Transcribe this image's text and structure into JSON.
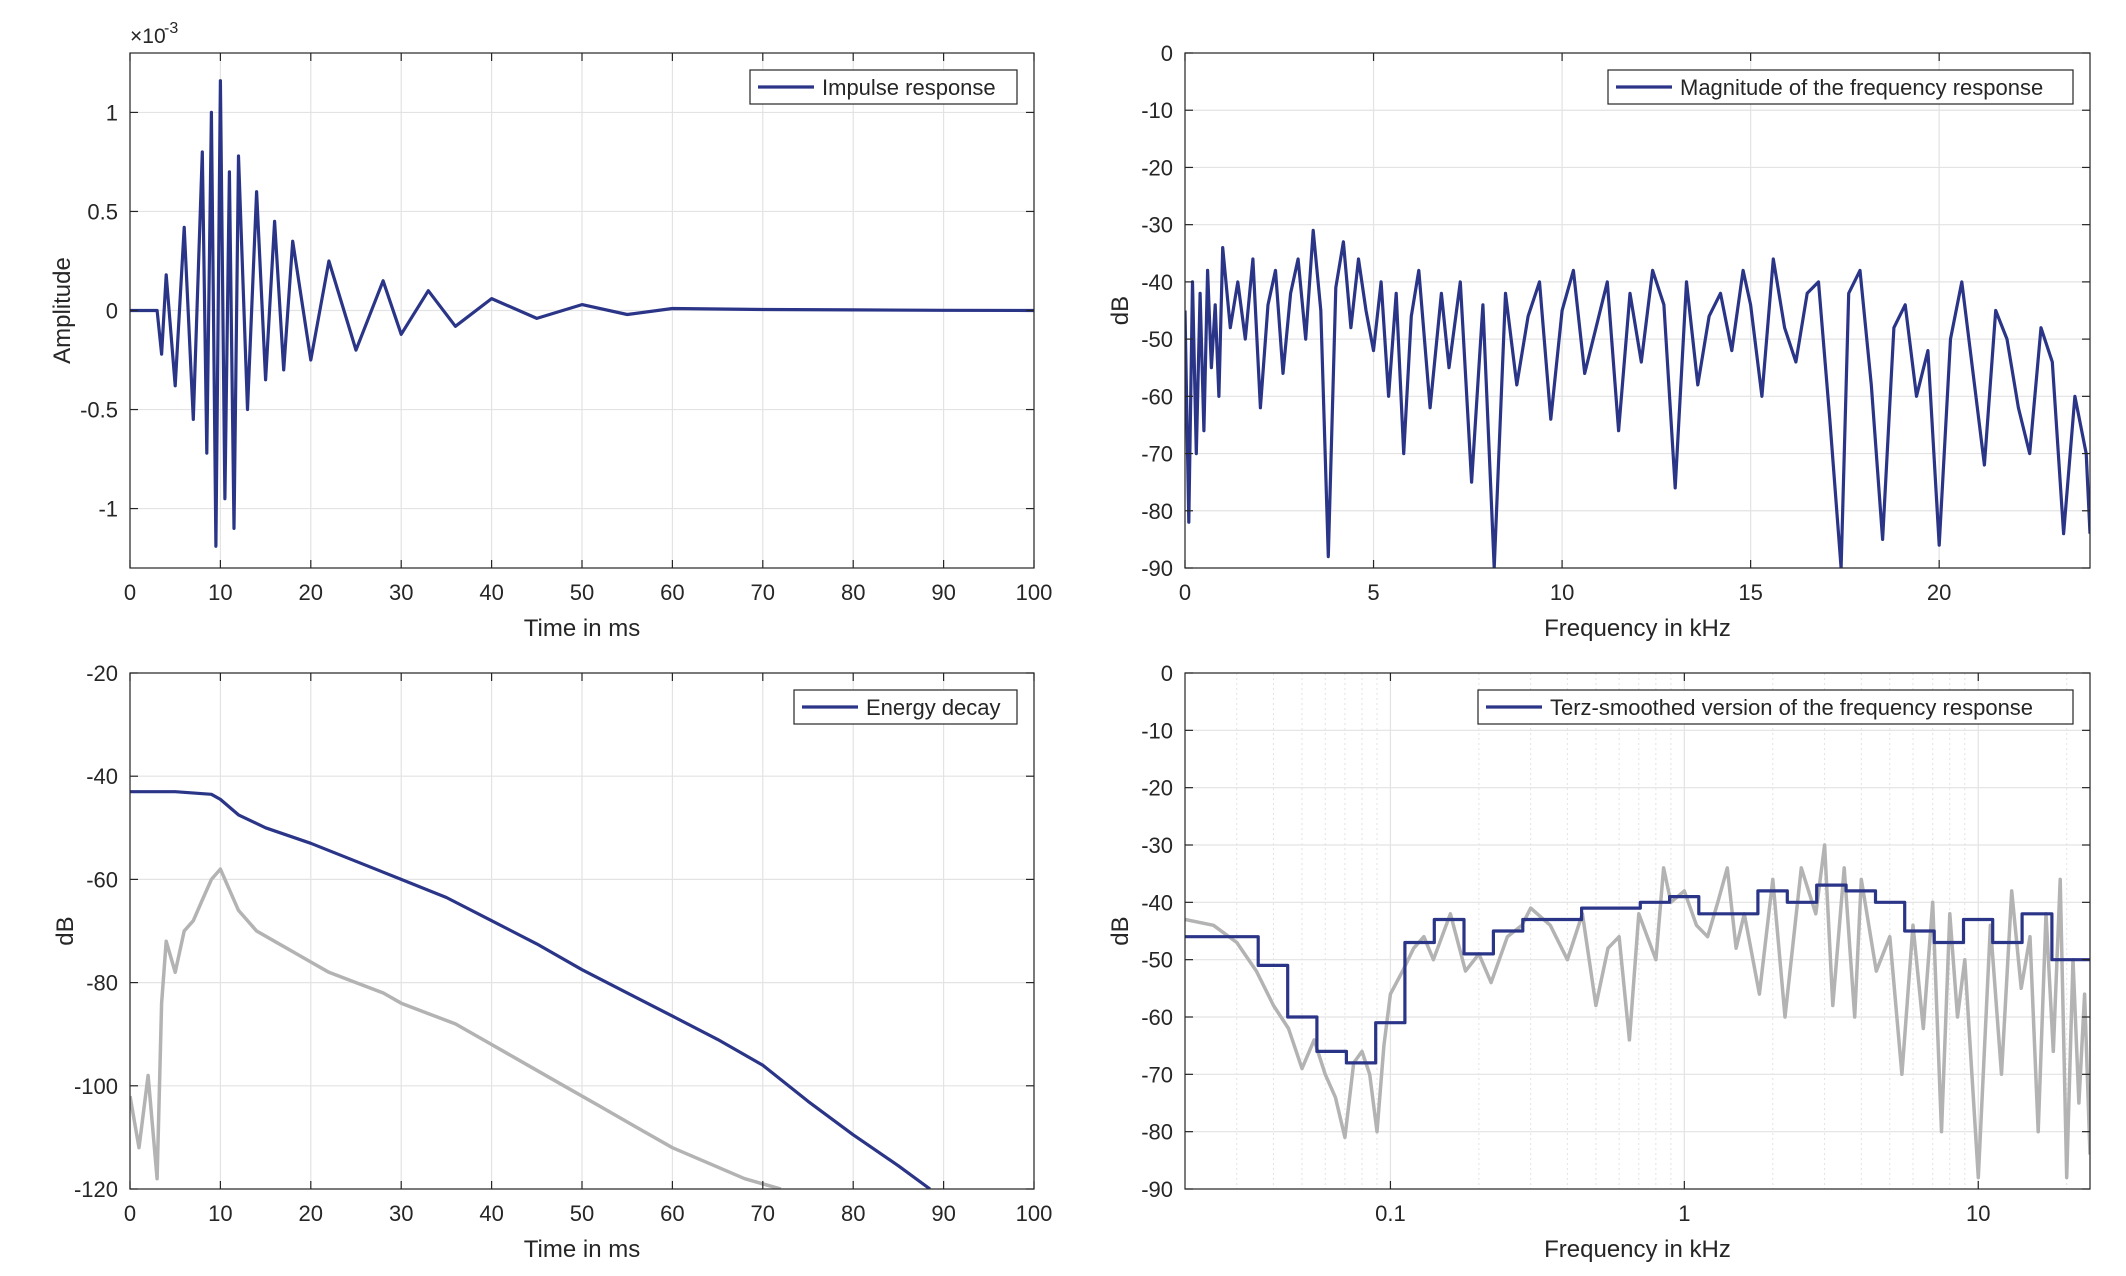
{
  "colors": {
    "series": "#2b3588",
    "gray": "#b3b3b3",
    "grid": "#e3e3e3",
    "axis": "#262626"
  },
  "chart_data": [
    {
      "type": "line",
      "xlabel": "Time in ms",
      "ylabel": "Amplitude",
      "exponent_label": "×10",
      "exponent_power": "-3",
      "xlim": [
        0,
        100
      ],
      "ylim": [
        -1.3,
        1.3
      ],
      "xticks": [
        0,
        10,
        20,
        30,
        40,
        50,
        60,
        70,
        80,
        90,
        100
      ],
      "yticks": [
        -1,
        -0.5,
        0,
        0.5,
        1
      ],
      "grid": true,
      "legend_placement": "top-right",
      "series": [
        {
          "name": "Impulse response",
          "color": "series",
          "x": [
            0,
            3,
            3.5,
            4,
            5,
            6,
            7,
            8,
            8.5,
            9,
            9.5,
            10,
            10.5,
            11,
            11.5,
            12,
            13,
            14,
            15,
            16,
            17,
            18,
            20,
            22,
            25,
            28,
            30,
            33,
            36,
            40,
            45,
            50,
            55,
            60,
            70,
            80,
            90,
            100
          ],
          "y": [
            0,
            0,
            -0.22,
            0.18,
            -0.38,
            0.42,
            -0.55,
            0.8,
            -0.72,
            1.0,
            -1.19,
            1.16,
            -0.95,
            0.7,
            -1.1,
            0.78,
            -0.5,
            0.6,
            -0.35,
            0.45,
            -0.3,
            0.35,
            -0.25,
            0.25,
            -0.2,
            0.15,
            -0.12,
            0.1,
            -0.08,
            0.06,
            -0.04,
            0.03,
            -0.02,
            0.01,
            0.005,
            0.003,
            0.001,
            0
          ]
        }
      ]
    },
    {
      "type": "line",
      "xlabel": "Frequency in kHz",
      "ylabel": "dB",
      "xlim": [
        0,
        24
      ],
      "ylim": [
        -90,
        0
      ],
      "xticks": [
        0,
        5,
        10,
        15,
        20
      ],
      "yticks": [
        0,
        -10,
        -20,
        -30,
        -40,
        -50,
        -60,
        -70,
        -80,
        -90
      ],
      "grid": true,
      "legend_placement": "top-right",
      "series": [
        {
          "name": "Magnitude of the frequency response",
          "color": "series",
          "x": [
            0,
            0.1,
            0.2,
            0.3,
            0.4,
            0.5,
            0.6,
            0.7,
            0.8,
            0.9,
            1.0,
            1.2,
            1.4,
            1.6,
            1.8,
            2.0,
            2.2,
            2.4,
            2.6,
            2.8,
            3.0,
            3.2,
            3.4,
            3.6,
            3.8,
            4.0,
            4.2,
            4.4,
            4.6,
            4.8,
            5.0,
            5.2,
            5.4,
            5.6,
            5.8,
            6.0,
            6.2,
            6.5,
            6.8,
            7.0,
            7.3,
            7.6,
            7.9,
            8.2,
            8.5,
            8.8,
            9.1,
            9.4,
            9.7,
            10.0,
            10.3,
            10.6,
            10.9,
            11.2,
            11.5,
            11.8,
            12.1,
            12.4,
            12.7,
            13.0,
            13.3,
            13.6,
            13.9,
            14.2,
            14.5,
            14.8,
            15.0,
            15.3,
            15.6,
            15.9,
            16.2,
            16.5,
            16.8,
            17.1,
            17.4,
            17.6,
            17.9,
            18.2,
            18.5,
            18.8,
            19.1,
            19.4,
            19.7,
            20.0,
            20.3,
            20.6,
            20.9,
            21.2,
            21.5,
            21.8,
            22.1,
            22.4,
            22.7,
            23.0,
            23.3,
            23.6,
            23.9,
            24.0
          ],
          "y": [
            -45,
            -82,
            -40,
            -70,
            -42,
            -66,
            -38,
            -55,
            -44,
            -60,
            -34,
            -48,
            -40,
            -50,
            -36,
            -62,
            -44,
            -38,
            -56,
            -42,
            -36,
            -50,
            -31,
            -45,
            -88,
            -41,
            -33,
            -48,
            -36,
            -45,
            -52,
            -40,
            -60,
            -42,
            -70,
            -46,
            -38,
            -62,
            -42,
            -55,
            -40,
            -75,
            -44,
            -90,
            -42,
            -58,
            -46,
            -40,
            -64,
            -45,
            -38,
            -56,
            -48,
            -40,
            -66,
            -42,
            -54,
            -38,
            -44,
            -76,
            -40,
            -58,
            -46,
            -42,
            -52,
            -38,
            -44,
            -60,
            -36,
            -48,
            -54,
            -42,
            -40,
            -64,
            -90,
            -42,
            -38,
            -58,
            -85,
            -48,
            -44,
            -60,
            -52,
            -86,
            -50,
            -40,
            -56,
            -72,
            -45,
            -50,
            -62,
            -70,
            -48,
            -54,
            -84,
            -60,
            -70,
            -84
          ]
        }
      ]
    },
    {
      "type": "line",
      "xlabel": "Time in ms",
      "ylabel": "dB",
      "xlim": [
        0,
        100
      ],
      "ylim": [
        -120,
        -20
      ],
      "xticks": [
        0,
        10,
        20,
        30,
        40,
        50,
        60,
        70,
        80,
        90,
        100
      ],
      "yticks": [
        -20,
        -40,
        -60,
        -80,
        -100,
        -120
      ],
      "grid": true,
      "legend_placement": "top-right",
      "series": [
        {
          "name": "Energy decay",
          "color": "series",
          "x": [
            0,
            5,
            9,
            10,
            12,
            15,
            20,
            25,
            30,
            35,
            40,
            45,
            50,
            55,
            60,
            65,
            70,
            75,
            80,
            85,
            88.5
          ],
          "y": [
            -43,
            -43,
            -43.5,
            -44.5,
            -47.5,
            -50,
            -53,
            -56.5,
            -60,
            -63.5,
            -68,
            -72.5,
            -77.5,
            -82,
            -86.5,
            -91,
            -96,
            -103,
            -109.5,
            -115.5,
            -120
          ]
        },
        {
          "color": "gray",
          "x": [
            0,
            1,
            2,
            3,
            3.5,
            4,
            5,
            6,
            7,
            8,
            9,
            10,
            11,
            12,
            14,
            16,
            18,
            20,
            22,
            25,
            28,
            30,
            33,
            36,
            40,
            44,
            48,
            52,
            56,
            60,
            64,
            68,
            72
          ],
          "y": [
            -102,
            -112,
            -98,
            -118,
            -84,
            -72,
            -78,
            -70,
            -68,
            -64,
            -60,
            -58,
            -62,
            -66,
            -70,
            -72,
            -74,
            -76,
            -78,
            -80,
            -82,
            -84,
            -86,
            -88,
            -92,
            -96,
            -100,
            -104,
            -108,
            -112,
            -115,
            -118,
            -120
          ]
        }
      ]
    },
    {
      "type": "line",
      "xlabel": "Frequency in kHz",
      "ylabel": "dB",
      "xscale": "log",
      "xlim": [
        0.02,
        24
      ],
      "ylim": [
        -90,
        0
      ],
      "xticks": [
        0.1,
        1,
        10
      ],
      "xticklabels": [
        "0.1",
        "1",
        "10"
      ],
      "yticks": [
        0,
        -10,
        -20,
        -30,
        -40,
        -50,
        -60,
        -70,
        -80,
        -90
      ],
      "grid": true,
      "legend_placement": "top-right",
      "series": [
        {
          "name": "Terz-smoothed version of the frequency response",
          "color": "series",
          "x": [
            0.02,
            0.0355,
            0.0355,
            0.0447,
            0.0447,
            0.0562,
            0.0562,
            0.0708,
            0.0708,
            0.0891,
            0.0891,
            0.112,
            0.112,
            0.141,
            0.141,
            0.178,
            0.178,
            0.224,
            0.224,
            0.282,
            0.282,
            0.355,
            0.355,
            0.447,
            0.447,
            0.562,
            0.562,
            0.708,
            0.708,
            0.891,
            0.891,
            1.12,
            1.12,
            1.41,
            1.41,
            1.78,
            1.78,
            2.24,
            2.24,
            2.82,
            2.82,
            3.55,
            3.55,
            4.47,
            4.47,
            5.62,
            5.62,
            7.08,
            7.08,
            8.91,
            8.91,
            11.2,
            11.2,
            14.1,
            14.1,
            17.8,
            17.8,
            24
          ],
          "y": [
            -46,
            -46,
            -51,
            -51,
            -60,
            -60,
            -66,
            -66,
            -68,
            -68,
            -61,
            -61,
            -47,
            -47,
            -43,
            -43,
            -49,
            -49,
            -45,
            -45,
            -43,
            -43,
            -43,
            -43,
            -41,
            -41,
            -41,
            -41,
            -40,
            -40,
            -39,
            -39,
            -42,
            -42,
            -42,
            -42,
            -38,
            -38,
            -40,
            -40,
            -37,
            -37,
            -38,
            -38,
            -40,
            -40,
            -45,
            -45,
            -47,
            -47,
            -43,
            -43,
            -47,
            -47,
            -42,
            -42,
            -50,
            -50
          ]
        },
        {
          "color": "gray",
          "x": [
            0.02,
            0.025,
            0.03,
            0.035,
            0.04,
            0.045,
            0.05,
            0.055,
            0.06,
            0.065,
            0.07,
            0.075,
            0.08,
            0.085,
            0.09,
            0.095,
            0.1,
            0.11,
            0.12,
            0.13,
            0.14,
            0.16,
            0.18,
            0.2,
            0.22,
            0.25,
            0.28,
            0.3,
            0.35,
            0.4,
            0.45,
            0.5,
            0.55,
            0.6,
            0.65,
            0.7,
            0.8,
            0.85,
            0.9,
            1.0,
            1.1,
            1.2,
            1.3,
            1.4,
            1.5,
            1.6,
            1.8,
            2.0,
            2.2,
            2.5,
            2.8,
            3.0,
            3.2,
            3.5,
            3.8,
            4.0,
            4.5,
            5.0,
            5.5,
            6.0,
            6.5,
            7.0,
            7.5,
            8.0,
            8.5,
            9.0,
            10,
            11,
            12,
            13,
            14,
            15,
            16,
            17,
            18,
            19,
            20,
            21,
            22,
            23,
            24
          ],
          "y": [
            -43,
            -44,
            -47,
            -52,
            -58,
            -62,
            -69,
            -64,
            -70,
            -74,
            -81,
            -68,
            -66,
            -70,
            -80,
            -65,
            -56,
            -52,
            -48,
            -46,
            -50,
            -42,
            -52,
            -49,
            -54,
            -46,
            -44,
            -41,
            -44,
            -50,
            -42,
            -58,
            -48,
            -46,
            -64,
            -42,
            -50,
            -34,
            -40,
            -38,
            -44,
            -46,
            -40,
            -34,
            -48,
            -42,
            -56,
            -36,
            -60,
            -34,
            -42,
            -30,
            -58,
            -34,
            -60,
            -36,
            -52,
            -46,
            -70,
            -44,
            -62,
            -40,
            -80,
            -42,
            -60,
            -50,
            -88,
            -44,
            -70,
            -38,
            -55,
            -46,
            -80,
            -42,
            -66,
            -36,
            -88,
            -50,
            -75,
            -56,
            -84
          ]
        }
      ]
    }
  ]
}
